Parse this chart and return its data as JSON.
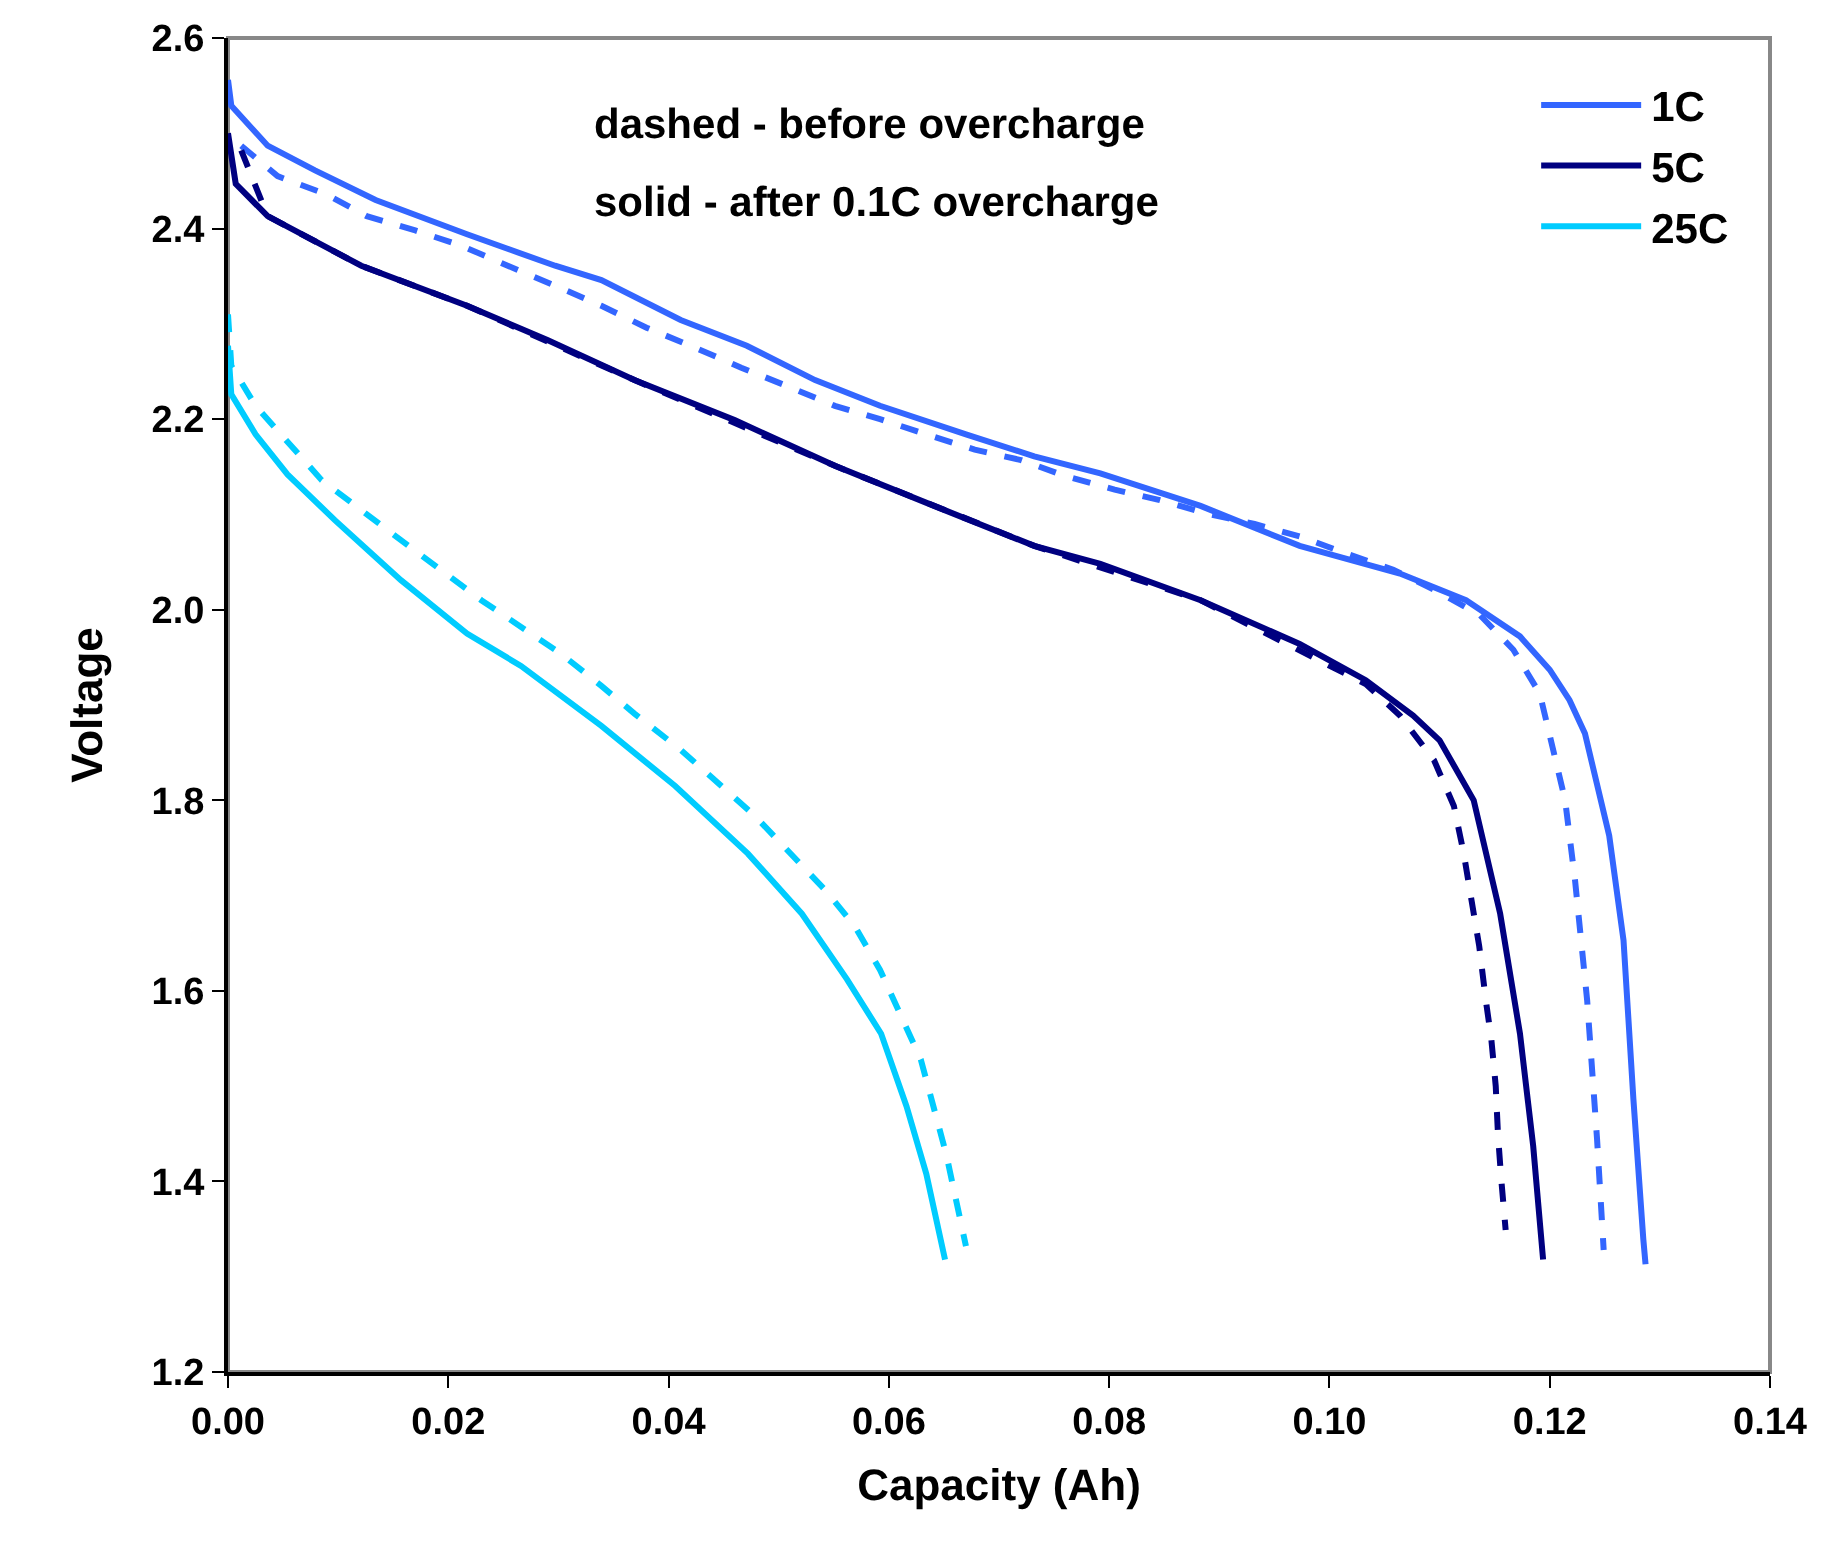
{
  "chart_data": {
    "type": "line",
    "xlabel": "Capacity (Ah)",
    "ylabel": "Voltage",
    "annotations": [
      "dashed - before overcharge",
      "solid - after 0.1C overcharge"
    ],
    "xlim": [
      0,
      0.14
    ],
    "xticks": [
      {
        "value": 0,
        "label": "0.00"
      },
      {
        "value": 0.02,
        "label": "0.02"
      },
      {
        "value": 0.04,
        "label": "0.04"
      },
      {
        "value": 0.06,
        "label": "0.06"
      },
      {
        "value": 0.08,
        "label": "0.08"
      },
      {
        "value": 0.1,
        "label": "0.10"
      },
      {
        "value": 0.12,
        "label": "0.12"
      },
      {
        "value": 0.14,
        "label": "0.14"
      }
    ],
    "ylim": [
      1.2,
      2.6
    ],
    "yticks": [
      {
        "value": 1.2,
        "label": "1.2"
      },
      {
        "value": 1.4,
        "label": "1.4"
      },
      {
        "value": 1.6,
        "label": "1.6"
      },
      {
        "value": 1.8,
        "label": "1.8"
      },
      {
        "value": 2.0,
        "label": "2.0"
      },
      {
        "value": 2.2,
        "label": "2.2"
      },
      {
        "value": 2.4,
        "label": "2.4"
      },
      {
        "value": 2.6,
        "label": "2.6"
      }
    ],
    "grid": false,
    "legend": "top right",
    "marker": "none",
    "series": [
      {
        "name": "1C",
        "color": "#3366ff",
        "line_style": "solid",
        "x": [
          0,
          0.0003,
          0.0036,
          0.0079,
          0.0134,
          0.0217,
          0.0297,
          0.0339,
          0.0411,
          0.0471,
          0.0533,
          0.0592,
          0.067,
          0.0732,
          0.0792,
          0.0883,
          0.0973,
          0.1064,
          0.1124,
          0.1173,
          0.12,
          0.1218,
          0.1232,
          0.1254,
          0.1267,
          0.1276,
          0.1285,
          0.1287
        ],
        "values": [
          2.556,
          2.529,
          2.487,
          2.461,
          2.43,
          2.394,
          2.361,
          2.346,
          2.304,
          2.277,
          2.241,
          2.214,
          2.184,
          2.161,
          2.143,
          2.109,
          2.067,
          2.038,
          2.01,
          1.972,
          1.937,
          1.905,
          1.87,
          1.763,
          1.653,
          1.486,
          1.339,
          1.313
        ]
      },
      {
        "name": "5C",
        "color": "#000080",
        "line_style": "solid",
        "x": [
          0,
          0.0007,
          0.0036,
          0.0121,
          0.0217,
          0.029,
          0.0369,
          0.046,
          0.0551,
          0.0641,
          0.0732,
          0.0792,
          0.0883,
          0.0973,
          0.1033,
          0.1076,
          0.11,
          0.1131,
          0.1155,
          0.1173,
          0.1185,
          0.1194
        ],
        "values": [
          2.5,
          2.447,
          2.413,
          2.361,
          2.319,
          2.283,
          2.241,
          2.199,
          2.151,
          2.109,
          2.067,
          2.048,
          2.01,
          1.964,
          1.926,
          1.889,
          1.863,
          1.8,
          1.681,
          1.555,
          1.437,
          1.318
        ]
      },
      {
        "name": "25C",
        "color": "#00ccff",
        "line_style": "solid",
        "x": [
          0,
          0.0003,
          0.0025,
          0.0054,
          0.0097,
          0.0157,
          0.0217,
          0.0266,
          0.0339,
          0.0406,
          0.0472,
          0.0521,
          0.0562,
          0.0593,
          0.0616,
          0.0634,
          0.0651
        ],
        "values": [
          2.277,
          2.226,
          2.184,
          2.142,
          2.094,
          2.031,
          1.975,
          1.941,
          1.878,
          1.815,
          1.744,
          1.681,
          1.612,
          1.555,
          1.479,
          1.408,
          1.318
        ]
      },
      {
        "color": "#3366ff",
        "line_style": "dashed",
        "x": [
          0.0012,
          0.0045,
          0.0089,
          0.0126,
          0.017,
          0.0212,
          0.0254,
          0.0297,
          0.0339,
          0.038,
          0.0424,
          0.0466,
          0.0507,
          0.0551,
          0.0592,
          0.0634,
          0.0678,
          0.072,
          0.0761,
          0.0805,
          0.0846,
          0.0888,
          0.0932,
          0.0973,
          0.1015,
          0.1058,
          0.1095,
          0.1137,
          0.1167,
          0.1191,
          0.1214,
          0.1223,
          0.1234,
          0.1243,
          0.1249
        ],
        "values": [
          2.487,
          2.455,
          2.436,
          2.413,
          2.398,
          2.382,
          2.361,
          2.34,
          2.319,
          2.296,
          2.275,
          2.254,
          2.235,
          2.214,
          2.2,
          2.184,
          2.168,
          2.157,
          2.14,
          2.126,
          2.115,
          2.101,
          2.09,
          2.077,
          2.059,
          2.042,
          2.021,
          1.994,
          1.958,
          1.912,
          1.8,
          1.716,
          1.59,
          1.444,
          1.328
        ]
      },
      {
        "color": "#000080",
        "line_style": "dashed",
        "x": [
          0.0012,
          0.0036,
          0.0121,
          0.0217,
          0.0369,
          0.0551,
          0.0732,
          0.0883,
          0.1033,
          0.1064,
          0.1095,
          0.1113,
          0.1122,
          0.1129,
          0.1136,
          0.1142,
          0.1147,
          0.1151,
          0.1153,
          0.1156,
          0.116
        ],
        "values": [
          2.482,
          2.413,
          2.361,
          2.319,
          2.241,
          2.151,
          2.067,
          2.01,
          1.922,
          1.889,
          1.842,
          1.794,
          1.744,
          1.695,
          1.647,
          1.59,
          1.549,
          1.5,
          1.45,
          1.402,
          1.349
        ]
      },
      {
        "color": "#00ccff",
        "line_style": "dashed",
        "x": [
          0,
          0.0003,
          0.0025,
          0.0085,
          0.0157,
          0.023,
          0.0302,
          0.0339,
          0.0369,
          0.0411,
          0.0478,
          0.0542,
          0.0569,
          0.0592,
          0.0629,
          0.0652,
          0.067
        ],
        "values": [
          2.31,
          2.256,
          2.214,
          2.136,
          2.073,
          2.01,
          1.954,
          1.92,
          1.891,
          1.853,
          1.784,
          1.706,
          1.668,
          1.622,
          1.528,
          1.429,
          1.332
        ]
      }
    ]
  }
}
